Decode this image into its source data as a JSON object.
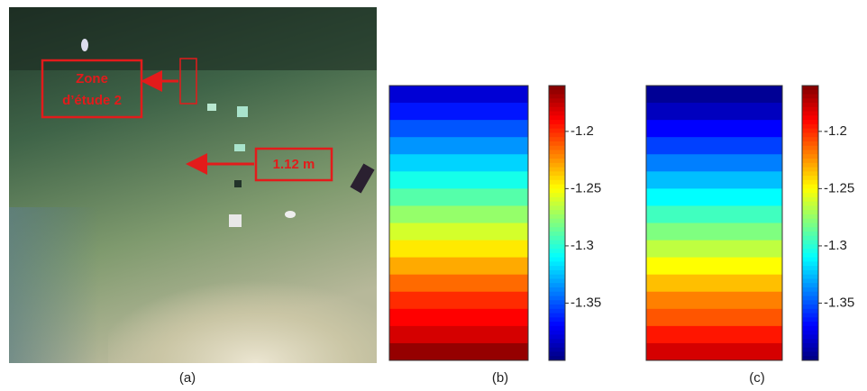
{
  "photo": {
    "caption": "(a)",
    "zone_label": [
      "Zone",
      "d’étude 2"
    ],
    "height_label": "1.12 m"
  },
  "chart_data": [
    {
      "type": "heatmap",
      "caption": "(b)",
      "colormap": "jet",
      "values": [
        -1.38,
        -1.365,
        -1.35,
        -1.335,
        -1.32,
        -1.305,
        -1.29,
        -1.275,
        -1.26,
        -1.245,
        -1.23,
        -1.215,
        -1.2,
        -1.19,
        -1.18,
        -1.165
      ],
      "clim": [
        -1.4,
        -1.16
      ],
      "cticks": [
        -1.2,
        -1.25,
        -1.3,
        -1.35
      ]
    },
    {
      "type": "heatmap",
      "caption": "(c)",
      "colormap": "jet",
      "values": [
        -1.395,
        -1.385,
        -1.37,
        -1.355,
        -1.34,
        -1.325,
        -1.31,
        -1.295,
        -1.28,
        -1.265,
        -1.25,
        -1.235,
        -1.22,
        -1.21,
        -1.195,
        -1.18
      ],
      "clim": [
        -1.4,
        -1.16
      ],
      "cticks": [
        -1.2,
        -1.25,
        -1.3,
        -1.35
      ]
    }
  ]
}
